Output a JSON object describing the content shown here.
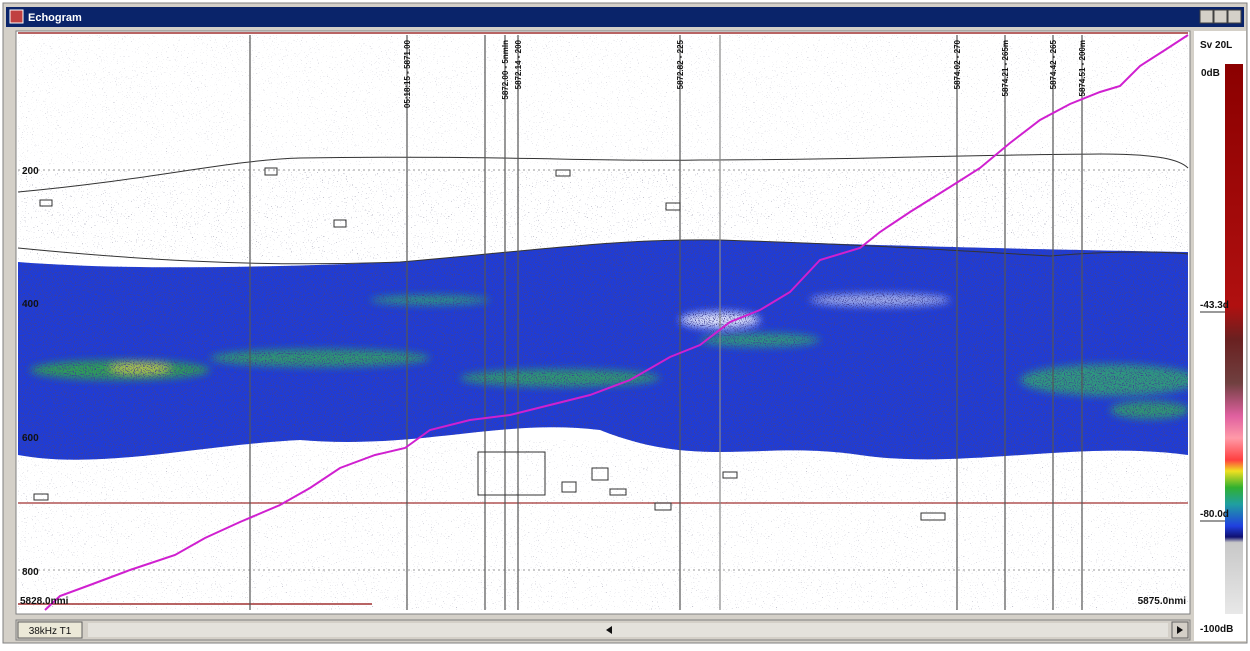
{
  "window": {
    "title": "Echogram",
    "tab": "38kHz T1"
  },
  "echogram": {
    "depth_labels": [
      "200",
      "400",
      "600",
      "800"
    ],
    "start_distance": "5828.0nmi",
    "end_distance": "5875.0nmi",
    "line_labels": [
      "05:18:15 - 5871.00",
      "5872.00 - 5nmln",
      "5872.14 - 200",
      "5872.82 - 225",
      "5874.02 - 270",
      "5874.21 - 265m",
      "5874.42 - 265",
      "5874.51 - 200m"
    ]
  },
  "color_scale": {
    "title": "Sv 20L",
    "labels": [
      "0dB",
      "-43.3d",
      "-80.0d",
      "-100dB"
    ]
  }
}
